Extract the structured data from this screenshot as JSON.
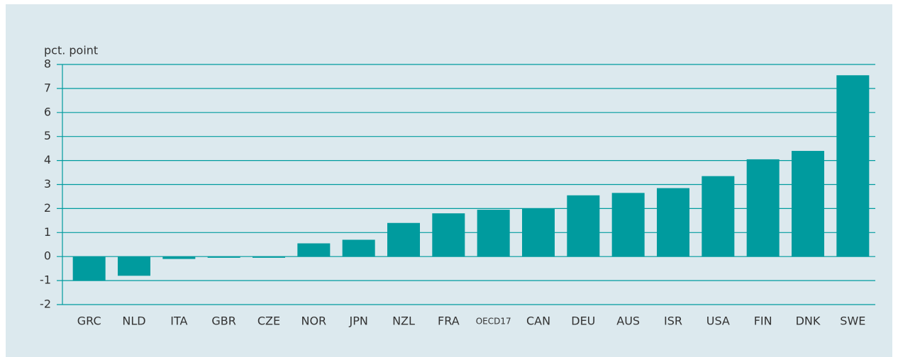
{
  "chart_data": {
    "type": "bar",
    "y_axis_label": "pct. point",
    "categories": [
      "GRC",
      "NLD",
      "ITA",
      "GBR",
      "CZE",
      "NOR",
      "JPN",
      "NZL",
      "FRA",
      "OECD17",
      "CAN",
      "DEU",
      "AUS",
      "ISR",
      "USA",
      "FIN",
      "DNK",
      "SWE"
    ],
    "values": [
      -1.0,
      -0.8,
      -0.1,
      -0.05,
      -0.05,
      0.55,
      0.7,
      1.4,
      1.8,
      1.95,
      2.0,
      2.55,
      2.65,
      2.85,
      3.35,
      4.05,
      4.4,
      7.55
    ],
    "color": "#009b9e",
    "ylim": [
      -2,
      8
    ],
    "yticks": [
      -2,
      -1,
      0,
      1,
      2,
      3,
      4,
      5,
      6,
      7,
      8
    ],
    "grid": true
  }
}
